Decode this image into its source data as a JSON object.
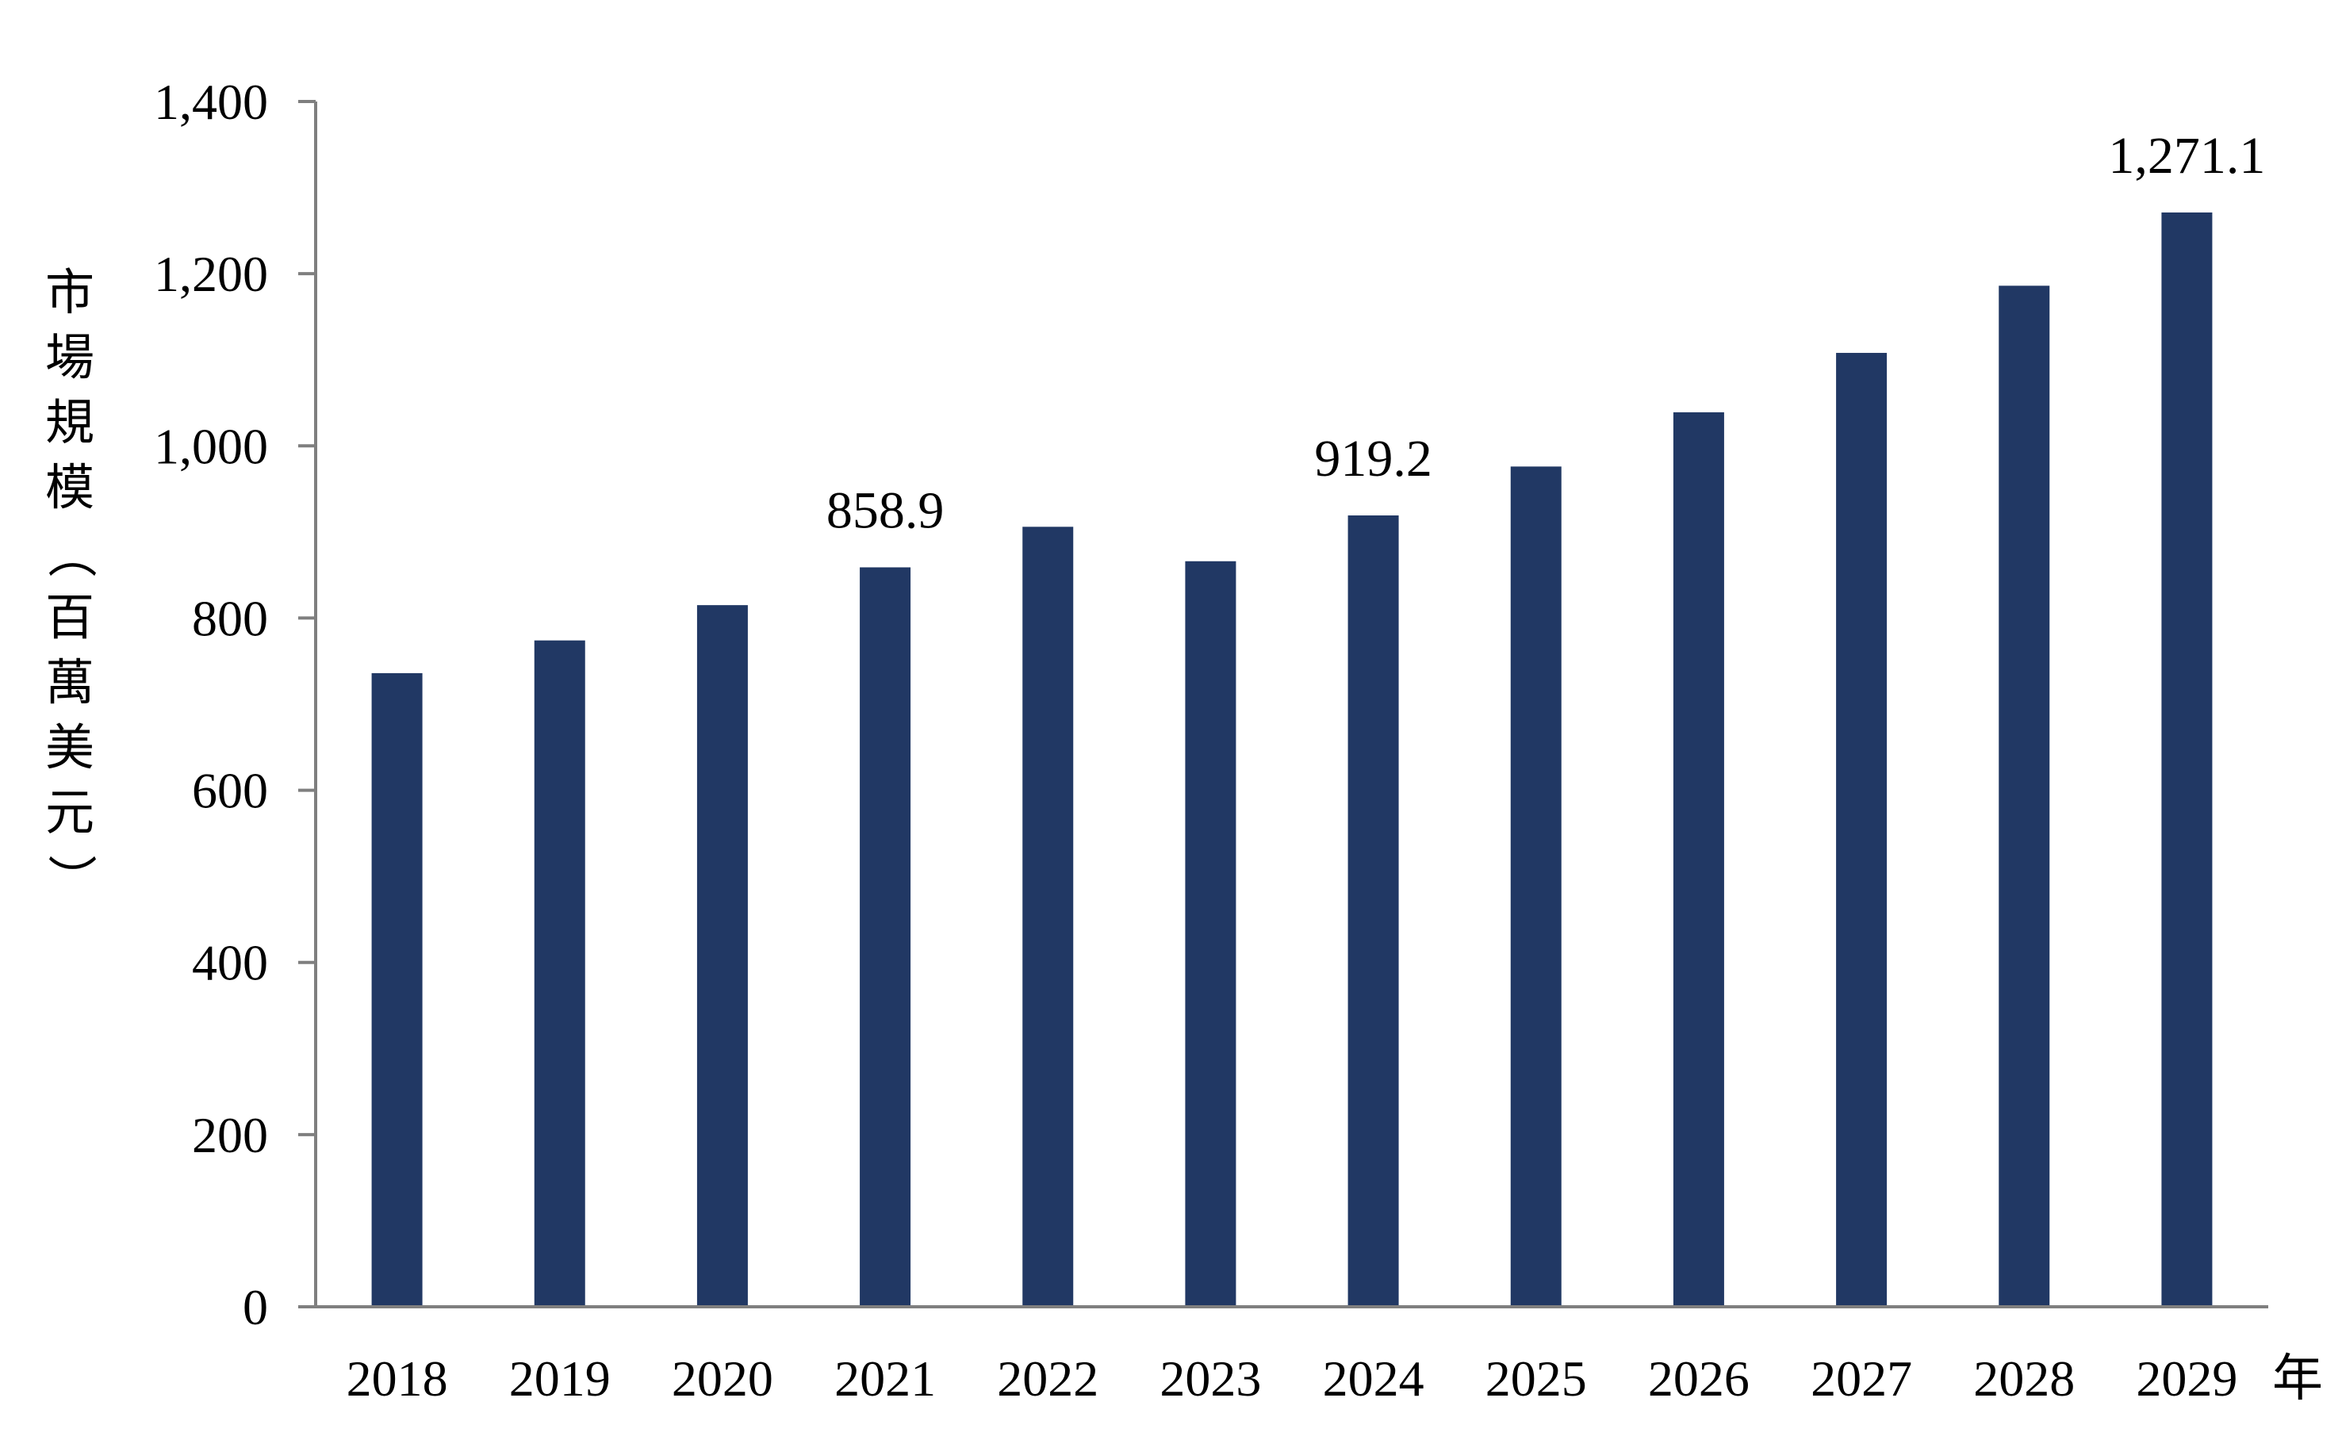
{
  "chart_data": {
    "type": "bar",
    "categories": [
      "2018",
      "2019",
      "2020",
      "2021",
      "2022",
      "2023",
      "2024",
      "2025",
      "2026",
      "2027",
      "2028",
      "2029"
    ],
    "values": [
      736,
      774,
      815,
      858.9,
      906,
      866,
      919.2,
      976,
      1039,
      1108,
      1186,
      1271.1
    ],
    "ylabel": "市場規模（百萬美元）",
    "xunit": "年",
    "ylim": [
      0,
      1400
    ],
    "yticks": [
      "0",
      "200",
      "400",
      "600",
      "800",
      "1,000",
      "1,200",
      "1,400"
    ],
    "data_labels": [
      {
        "index": 3,
        "text": "858.9"
      },
      {
        "index": 6,
        "text": "919.2"
      },
      {
        "index": 11,
        "text": "1,271.1"
      }
    ],
    "bar_color": "#213864",
    "grid": false,
    "legend": "none"
  }
}
